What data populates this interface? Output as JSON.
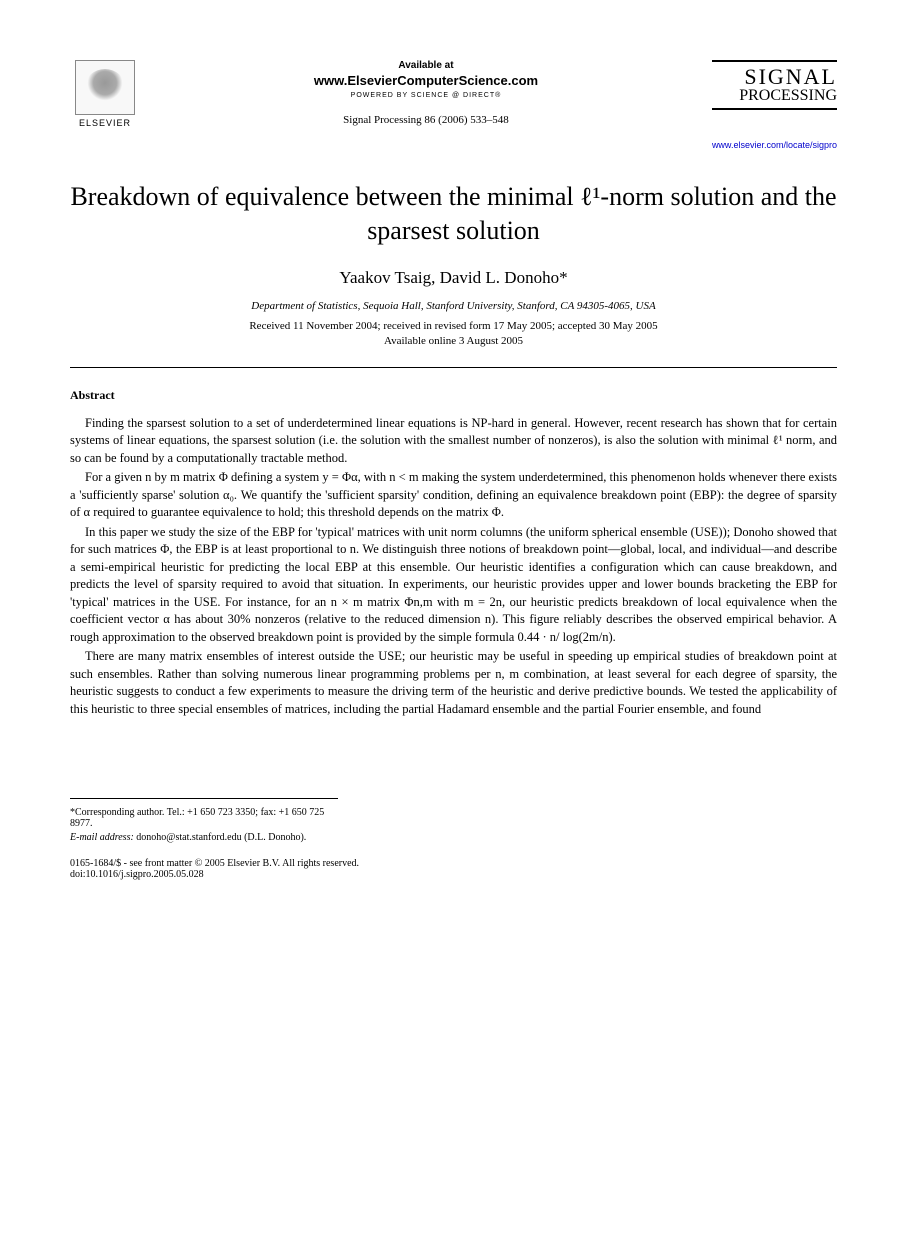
{
  "header": {
    "elsevier_label": "ELSEVIER",
    "available_at": "Available at",
    "elsevier_cs": "www.ElsevierComputerScience.com",
    "powered_by": "POWERED BY SCIENCE @ DIRECT®",
    "journal_ref": "Signal Processing 86 (2006) 533–548",
    "journal_logo_line1": "SIGNAL",
    "journal_logo_line2": "PROCESSING",
    "journal_url": "www.elsevier.com/locate/sigpro"
  },
  "title": "Breakdown of equivalence between the minimal ℓ¹-norm solution and the sparsest solution",
  "authors": "Yaakov Tsaig, David L. Donoho*",
  "affiliation": "Department of Statistics, Sequoia Hall, Stanford University, Stanford, CA 94305-4065, USA",
  "dates_line1": "Received 11 November 2004; received in revised form 17 May 2005; accepted 30 May 2005",
  "dates_line2": "Available online 3 August 2005",
  "abstract_heading": "Abstract",
  "abstract": {
    "p1": "Finding the sparsest solution to a set of underdetermined linear equations is NP-hard in general. However, recent research has shown that for certain systems of linear equations, the sparsest solution (i.e. the solution with the smallest number of nonzeros), is also the solution with minimal ℓ¹ norm, and so can be found by a computationally tractable method.",
    "p2": "For a given n by m matrix Φ defining a system y = Φα, with n < m making the system underdetermined, this phenomenon holds whenever there exists a 'sufficiently sparse' solution α₀. We quantify the 'sufficient sparsity' condition, defining an equivalence breakdown point (EBP): the degree of sparsity of α required to guarantee equivalence to hold; this threshold depends on the matrix Φ.",
    "p3": "In this paper we study the size of the EBP for 'typical' matrices with unit norm columns (the uniform spherical ensemble (USE)); Donoho showed that for such matrices Φ, the EBP is at least proportional to n. We distinguish three notions of breakdown point—global, local, and individual—and describe a semi-empirical heuristic for predicting the local EBP at this ensemble. Our heuristic identifies a configuration which can cause breakdown, and predicts the level of sparsity required to avoid that situation. In experiments, our heuristic provides upper and lower bounds bracketing the EBP for 'typical' matrices in the USE. For instance, for an n × m matrix Φn,m with m = 2n, our heuristic predicts breakdown of local equivalence when the coefficient vector α has about 30% nonzeros (relative to the reduced dimension n). This figure reliably describes the observed empirical behavior. A rough approximation to the observed breakdown point is provided by the simple formula 0.44 · n/ log(2m/n).",
    "p4": "There are many matrix ensembles of interest outside the USE; our heuristic may be useful in speeding up empirical studies of breakdown point at such ensembles. Rather than solving numerous linear programming problems per n, m combination, at least several for each degree of sparsity, the heuristic suggests to conduct a few experiments to measure the driving term of the heuristic and derive predictive bounds. We tested the applicability of this heuristic to three special ensembles of matrices, including the partial Hadamard ensemble and the partial Fourier ensemble, and found"
  },
  "footnote": {
    "corresponding": "*Corresponding author. Tel.: +1 650 723 3350; fax: +1 650 725 8977.",
    "email_label": "E-mail address:",
    "email": "donoho@stat.stanford.edu (D.L. Donoho)."
  },
  "copyright": "0165-1684/$ - see front matter © 2005 Elsevier B.V. All rights reserved.",
  "doi": "doi:10.1016/j.sigpro.2005.05.028"
}
